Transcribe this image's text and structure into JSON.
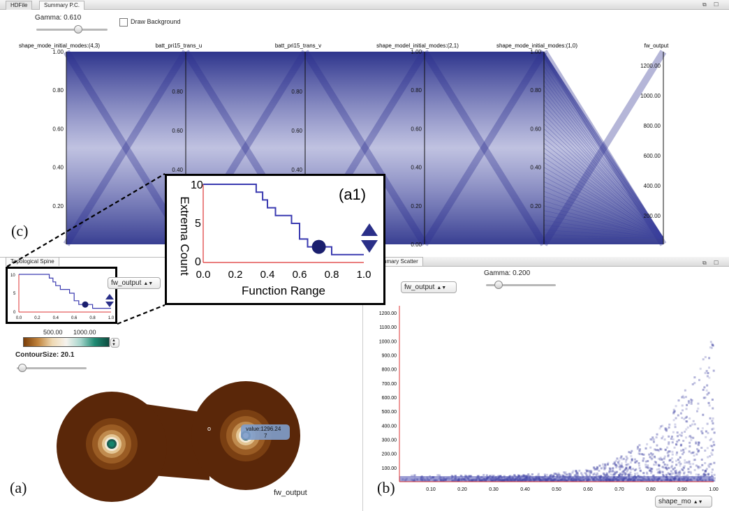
{
  "top_tabs": [
    "HDFile",
    "Summary P.C."
  ],
  "pc_panel": {
    "gamma_label": "Gamma: 0.610",
    "gamma_value": 0.61,
    "draw_background_label": "Draw Background",
    "draw_background_checked": false,
    "axes": [
      {
        "title": "shape_mode_initial_modes:(4,3)",
        "ticks": [
          "1.00",
          "0.80",
          "0.60",
          "0.40",
          "0.20"
        ]
      },
      {
        "title": "batt_pri15_trans_u",
        "ticks": [
          "0.80",
          "0.60",
          "0.40"
        ]
      },
      {
        "title": "batt_pri15_trans_v",
        "ticks": [
          "0.80",
          "0.60",
          "0.40"
        ]
      },
      {
        "title": "shape_model_initial_modes:(2,1)",
        "ticks": [
          "1.00",
          "0.80",
          "0.60",
          "0.40",
          "0.20",
          "0.00"
        ]
      },
      {
        "title": "shape_mode_initial_modes:(1,0)",
        "ticks": [
          "1.00",
          "0.80",
          "0.60",
          "0.40",
          "0.20"
        ]
      },
      {
        "title": "fw_output",
        "ticks": [
          "1200.00",
          "1000.00",
          "800.00",
          "600.00",
          "400.00",
          "200.00"
        ]
      }
    ]
  },
  "spine_panel": {
    "tab": "Topological Spine",
    "mini_chart_ticks_x": [
      "0.0",
      "0.2",
      "0.4",
      "0.6",
      "0.8",
      "1.0"
    ],
    "mini_chart_ticks_y": [
      "10",
      "5",
      "0"
    ],
    "field_select": "fw_output",
    "colormap_ticks": [
      "500.00",
      "1000.00"
    ],
    "contour_label": "ContourSize: 20.1",
    "contour_value": 20.1,
    "saddle_label": "o",
    "tooltip_line1": "value:1296.24",
    "tooltip_line2": "7",
    "field_name": "fw_output"
  },
  "scatter_panel": {
    "tab": "Summary Scatter",
    "y_select": "fw_output",
    "gamma_label": "Gamma: 0.200",
    "gamma_value": 0.2,
    "y_ticks": [
      "1200.00",
      "1100.00",
      "1000.00",
      "900.00",
      "800.00",
      "700.00",
      "600.00",
      "500.00",
      "400.00",
      "300.00",
      "200.00",
      "100.00"
    ],
    "x_ticks": [
      "0.10",
      "0.20",
      "0.30",
      "0.40",
      "0.50",
      "0.60",
      "0.70",
      "0.80",
      "0.90",
      "1.00"
    ],
    "x_select": "shape_mo"
  },
  "inset": {
    "label": "(a1)",
    "ylabel": "Extrema Count",
    "xlabel": "Function Range",
    "x_ticks": [
      "0.0",
      "0.2",
      "0.4",
      "0.6",
      "0.8",
      "1.0"
    ],
    "y_ticks": [
      "10",
      "5",
      "0"
    ]
  },
  "chart_data": {
    "type": "line",
    "title": "",
    "xlabel": "Function Range",
    "ylabel": "Extrema Count",
    "xlim": [
      0,
      1
    ],
    "ylim": [
      0,
      10
    ],
    "x": [
      0.0,
      0.3,
      0.33,
      0.37,
      0.4,
      0.45,
      0.5,
      0.55,
      0.6,
      0.65,
      0.7,
      0.75,
      0.8,
      1.0
    ],
    "series": [
      {
        "values": [
          10,
          10,
          9,
          8,
          7,
          6,
          6,
          5,
          3,
          2,
          2,
          2,
          1,
          1
        ]
      }
    ],
    "marker": {
      "x": 0.72,
      "y": 2
    }
  },
  "panel_labels": {
    "a": "(a)",
    "b": "(b)",
    "c": "(c)"
  },
  "colors": {
    "pc_line": "#2c2f90",
    "step": "#3a3ab0",
    "axis_red": "#d33"
  }
}
